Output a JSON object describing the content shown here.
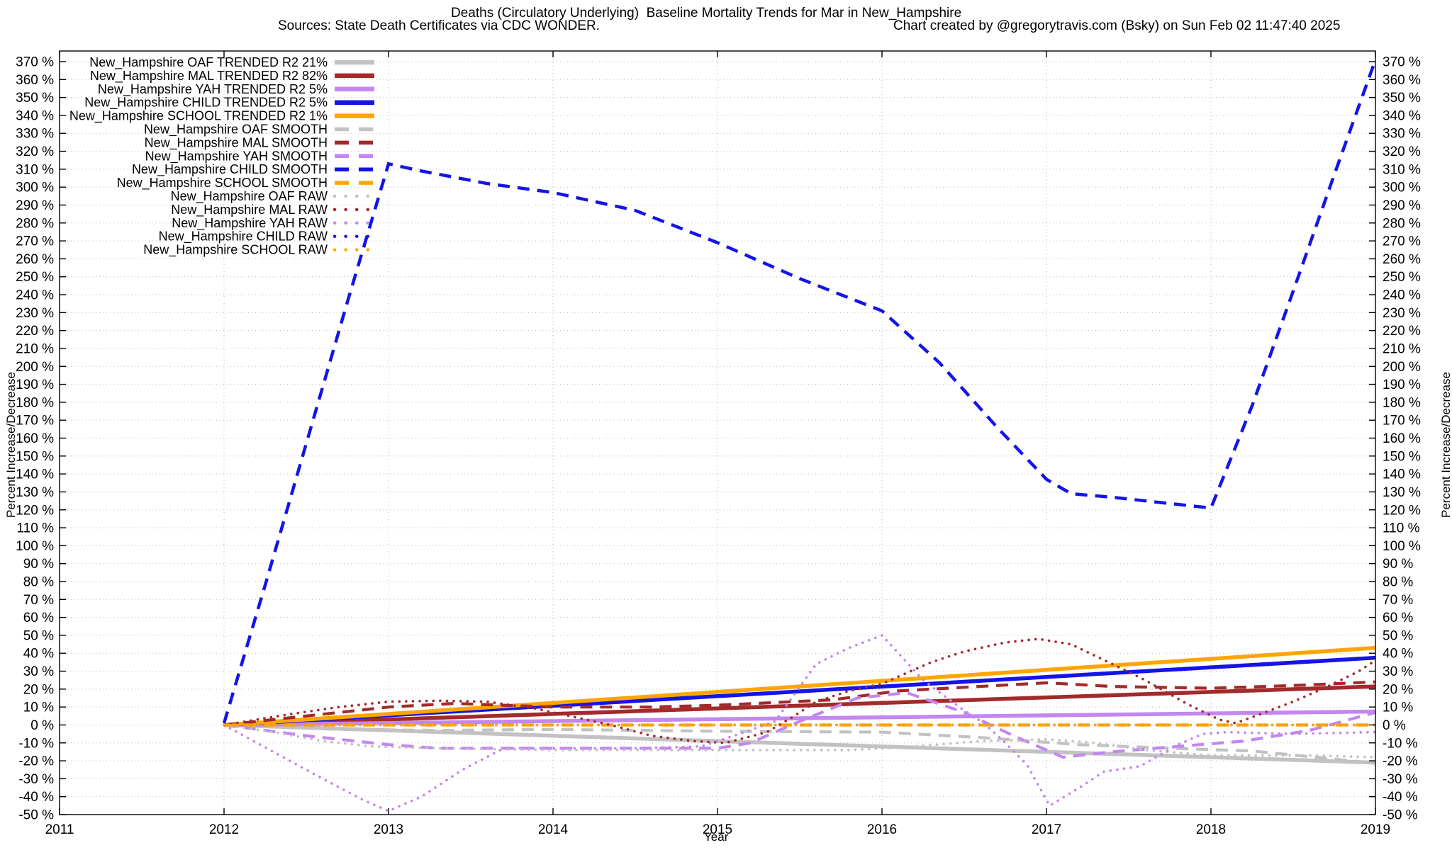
{
  "header": {
    "title": "Deaths (Circulatory Underlying)  Baseline Mortality Trends for Mar in New_Hampshire",
    "source_note": "Sources: State Death Certificates via CDC WONDER.",
    "credit_note": "Chart created by @gregorytravis.com (Bsky) on Sun Feb 02 11:47:40 2025"
  },
  "chart_data": {
    "type": "line",
    "title": "Deaths (Circulatory Underlying)  Baseline Mortality Trends for Mar in New_Hampshire",
    "xlabel": "Year",
    "ylabel": "Percent Increase/Decrease",
    "y2label": "Percent Increase/Decrease",
    "xlim": [
      2011,
      2019
    ],
    "ylim": [
      -50,
      370
    ],
    "xticks": [
      2011,
      2012,
      2013,
      2014,
      2015,
      2016,
      2017,
      2018,
      2019
    ],
    "ytick_step": 10,
    "ytick_suffix": " %",
    "grid": true,
    "legend_position": "top-left",
    "colors": {
      "gray": "#c2c2c2",
      "dark_red": "#a32a2a",
      "purple": "#c387f0",
      "blue": "#1414e8",
      "orange": "#ffa500",
      "grid": "#c9c9c9",
      "axis": "#000000"
    },
    "series": [
      {
        "name": "oaf-trended",
        "label": "New_Hampshire OAF TRENDED R2  21%",
        "r2": "21%",
        "color": "#c2c2c2",
        "style": "solid",
        "width": 5.5,
        "points": [
          [
            2012,
            0
          ],
          [
            2019,
            -21
          ]
        ]
      },
      {
        "name": "mal-trended",
        "label": "New_Hampshire MAL TRENDED R2  82%",
        "r2": "82%",
        "color": "#a32a2a",
        "style": "solid",
        "width": 5.5,
        "points": [
          [
            2012,
            0
          ],
          [
            2019,
            21.5
          ]
        ]
      },
      {
        "name": "yah-trended",
        "label": "New_Hampshire YAH TRENDED R2   5%",
        "r2": "5%",
        "color": "#c387f0",
        "style": "solid",
        "width": 5.5,
        "points": [
          [
            2012,
            0
          ],
          [
            2019,
            7.5
          ]
        ]
      },
      {
        "name": "child-trended",
        "label": "New_Hampshire CHILD TRENDED R2   5%",
        "r2": "5%",
        "color": "#1414e8",
        "style": "solid",
        "width": 5.5,
        "points": [
          [
            2012,
            0
          ],
          [
            2019,
            37.5
          ]
        ]
      },
      {
        "name": "school-trended",
        "label": "New_Hampshire SCHOOL TRENDED R2   1%",
        "r2": "1%",
        "color": "#ffa500",
        "style": "solid",
        "width": 5.5,
        "points": [
          [
            2012,
            0
          ],
          [
            2019,
            43
          ]
        ]
      },
      {
        "name": "oaf-smooth",
        "label": "New_Hampshire OAF SMOOTH",
        "color": "#c2c2c2",
        "style": "dashed",
        "width": 4.2,
        "points": [
          [
            2012,
            0
          ],
          [
            2012.7,
            -2.5
          ],
          [
            2013.3,
            -3
          ],
          [
            2014,
            -2.5
          ],
          [
            2015,
            -3.5
          ],
          [
            2016,
            -4
          ],
          [
            2016.6,
            -7
          ],
          [
            2017.2,
            -11
          ],
          [
            2017.85,
            -13.3
          ],
          [
            2018.25,
            -14.5
          ],
          [
            2018.8,
            -19.5
          ],
          [
            2019,
            -21.5
          ]
        ]
      },
      {
        "name": "mal-smooth",
        "label": "New_Hampshire MAL SMOOTH",
        "color": "#a32a2a",
        "style": "dashed",
        "width": 4.2,
        "points": [
          [
            2012,
            0
          ],
          [
            2012.5,
            5
          ],
          [
            2013,
            10
          ],
          [
            2013.4,
            12
          ],
          [
            2014,
            10
          ],
          [
            2014.6,
            10
          ],
          [
            2015,
            11
          ],
          [
            2015.7,
            14
          ],
          [
            2016.1,
            19
          ],
          [
            2016.5,
            21
          ],
          [
            2017,
            23.5
          ],
          [
            2017.4,
            21.5
          ],
          [
            2018,
            20.5
          ],
          [
            2018.5,
            22
          ],
          [
            2019,
            24
          ]
        ]
      },
      {
        "name": "yah-smooth",
        "label": "New_Hampshire YAH SMOOTH",
        "color": "#c387f0",
        "style": "dashed",
        "width": 4.2,
        "points": [
          [
            2012,
            0
          ],
          [
            2012.5,
            -6
          ],
          [
            2013,
            -11
          ],
          [
            2013.3,
            -13
          ],
          [
            2014,
            -13
          ],
          [
            2015,
            -13
          ],
          [
            2015.2,
            -10
          ],
          [
            2015.5,
            2
          ],
          [
            2015.85,
            15
          ],
          [
            2016.15,
            18
          ],
          [
            2016.5,
            7
          ],
          [
            2016.8,
            -6
          ],
          [
            2017.1,
            -18
          ],
          [
            2017.4,
            -15
          ],
          [
            2017.8,
            -12
          ],
          [
            2018.2,
            -9
          ],
          [
            2018.6,
            -3
          ],
          [
            2019,
            7
          ]
        ]
      },
      {
        "name": "child-smooth",
        "label": "New_Hampshire CHILD SMOOTH",
        "color": "#1414e8",
        "style": "dashed",
        "width": 4.5,
        "points": [
          [
            2012,
            1
          ],
          [
            2012.25,
            78
          ],
          [
            2012.5,
            157
          ],
          [
            2012.75,
            236
          ],
          [
            2013,
            313
          ],
          [
            2013.2,
            309
          ],
          [
            2013.6,
            302
          ],
          [
            2014,
            297
          ],
          [
            2014.5,
            287
          ],
          [
            2015,
            269
          ],
          [
            2015.5,
            249
          ],
          [
            2016,
            231
          ],
          [
            2016.35,
            202
          ],
          [
            2016.7,
            166
          ],
          [
            2017,
            137
          ],
          [
            2017.15,
            129
          ],
          [
            2017.4,
            127
          ],
          [
            2017.7,
            124
          ],
          [
            2018,
            121
          ],
          [
            2018.25,
            178
          ],
          [
            2018.5,
            242
          ],
          [
            2018.75,
            307
          ],
          [
            2019,
            371
          ]
        ]
      },
      {
        "name": "school-smooth",
        "label": "New_Hampshire SCHOOL SMOOTH",
        "color": "#ffa500",
        "style": "dashed",
        "width": 4.2,
        "points": [
          [
            2012,
            0
          ],
          [
            2019,
            0
          ]
        ]
      },
      {
        "name": "oaf-raw",
        "label": "New_Hampshire OAF RAW",
        "color": "#c2c2c2",
        "style": "dotted",
        "width": 3.6,
        "points": [
          [
            2012,
            0
          ],
          [
            2012.3,
            -4
          ],
          [
            2012.6,
            -9
          ],
          [
            2012.9,
            -12
          ],
          [
            2013.3,
            -13
          ],
          [
            2014,
            -14
          ],
          [
            2015,
            -14
          ],
          [
            2015.8,
            -14
          ],
          [
            2016.2,
            -12
          ],
          [
            2016.6,
            -9
          ],
          [
            2017,
            -8
          ],
          [
            2017.3,
            -10
          ],
          [
            2017.6,
            -14
          ],
          [
            2018,
            -17
          ],
          [
            2018.6,
            -17
          ],
          [
            2019,
            -18
          ]
        ]
      },
      {
        "name": "mal-raw",
        "label": "New_Hampshire MAL RAW",
        "color": "#a32a2a",
        "style": "dotted",
        "width": 3.6,
        "points": [
          [
            2012,
            0
          ],
          [
            2012.4,
            6
          ],
          [
            2012.7,
            10
          ],
          [
            2013,
            13
          ],
          [
            2013.3,
            13.5
          ],
          [
            2013.6,
            13
          ],
          [
            2013.9,
            9
          ],
          [
            2014.1,
            5
          ],
          [
            2014.35,
            0
          ],
          [
            2014.6,
            -6
          ],
          [
            2014.85,
            -9
          ],
          [
            2015.05,
            -10
          ],
          [
            2015.3,
            -4
          ],
          [
            2015.45,
            4
          ],
          [
            2015.6,
            13
          ],
          [
            2015.8,
            19
          ],
          [
            2016,
            23
          ],
          [
            2016.3,
            35
          ],
          [
            2016.5,
            41
          ],
          [
            2016.75,
            46
          ],
          [
            2016.95,
            48
          ],
          [
            2017.15,
            45
          ],
          [
            2017.4,
            34
          ],
          [
            2017.6,
            25
          ],
          [
            2017.85,
            12
          ],
          [
            2018.05,
            3
          ],
          [
            2018.15,
            1
          ],
          [
            2018.3,
            6
          ],
          [
            2018.5,
            13
          ],
          [
            2018.7,
            21
          ],
          [
            2018.9,
            30
          ],
          [
            2019,
            36
          ]
        ]
      },
      {
        "name": "yah-raw",
        "label": "New_Hampshire YAH RAW",
        "color": "#c387f0",
        "style": "dotted",
        "width": 3.6,
        "points": [
          [
            2012,
            0
          ],
          [
            2012.3,
            -15
          ],
          [
            2012.6,
            -30
          ],
          [
            2012.85,
            -42
          ],
          [
            2013,
            -48
          ],
          [
            2013.2,
            -40
          ],
          [
            2013.45,
            -25
          ],
          [
            2013.7,
            -13
          ],
          [
            2014,
            -13
          ],
          [
            2014.5,
            -13
          ],
          [
            2014.9,
            -12
          ],
          [
            2015.1,
            -6
          ],
          [
            2015.35,
            2
          ],
          [
            2015.6,
            34
          ],
          [
            2015.8,
            43
          ],
          [
            2016,
            50
          ],
          [
            2016.25,
            25
          ],
          [
            2016.5,
            8
          ],
          [
            2016.62,
            1
          ],
          [
            2016.75,
            -10
          ],
          [
            2016.88,
            -22
          ],
          [
            2017.02,
            -45
          ],
          [
            2017.2,
            -35
          ],
          [
            2017.35,
            -26
          ],
          [
            2017.57,
            -23
          ],
          [
            2017.8,
            -11
          ],
          [
            2017.95,
            -5
          ],
          [
            2018.1,
            -4
          ],
          [
            2018.5,
            -5
          ],
          [
            2019,
            -4
          ]
        ]
      },
      {
        "name": "child-raw",
        "label": "New_Hampshire CHILD RAW",
        "color": "#1414e8",
        "style": "dotted",
        "width": 3.6,
        "points": [
          [
            2012,
            0
          ],
          [
            2019,
            0
          ]
        ]
      },
      {
        "name": "school-raw",
        "label": "New_Hampshire SCHOOL RAW",
        "color": "#ffa500",
        "style": "dotted",
        "width": 3.6,
        "points": [
          [
            2012,
            0
          ],
          [
            2019,
            0
          ]
        ]
      }
    ]
  }
}
